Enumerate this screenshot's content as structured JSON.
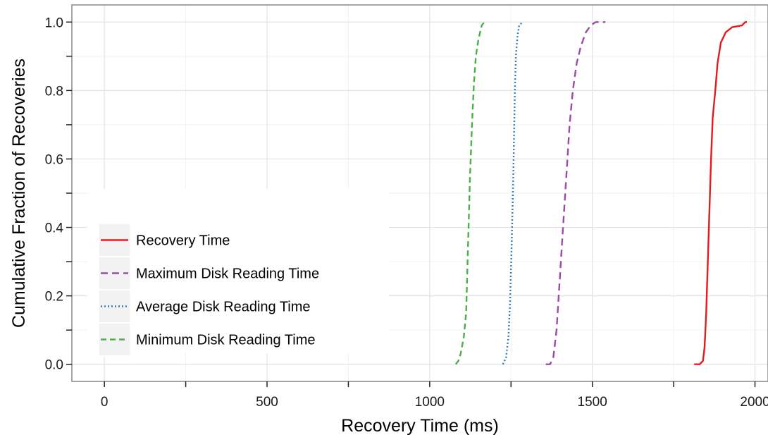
{
  "chart_data": {
    "type": "line",
    "title": "",
    "xlabel": "Recovery Time (ms)",
    "ylabel": "Cumulative Fraction of Recoveries",
    "xlim": [
      -100,
      2040
    ],
    "ylim": [
      -0.05,
      1.05
    ],
    "x_ticks": [
      0,
      500,
      1000,
      1500,
      2000
    ],
    "x_tick_labels": [
      "0",
      "500",
      "1000",
      "1500",
      "2000"
    ],
    "y_ticks": [
      0.0,
      0.2,
      0.4,
      0.6,
      0.8,
      1.0
    ],
    "y_tick_labels": [
      "0.0",
      "0.2",
      "0.4",
      "0.6",
      "0.8",
      "1.0"
    ],
    "grid": true,
    "legend_position": "bottom-left",
    "series": [
      {
        "name": "Recovery Time",
        "color": "#e41a1c",
        "dash": "solid",
        "points": [
          [
            1813,
            0.0
          ],
          [
            1830,
            0.0
          ],
          [
            1840,
            0.01
          ],
          [
            1845,
            0.05
          ],
          [
            1850,
            0.15
          ],
          [
            1855,
            0.3
          ],
          [
            1860,
            0.45
          ],
          [
            1865,
            0.6
          ],
          [
            1870,
            0.72
          ],
          [
            1878,
            0.8
          ],
          [
            1885,
            0.88
          ],
          [
            1895,
            0.94
          ],
          [
            1910,
            0.97
          ],
          [
            1930,
            0.985
          ],
          [
            1960,
            0.99
          ],
          [
            1970,
            1.0
          ],
          [
            1975,
            1.0
          ]
        ]
      },
      {
        "name": "Maximum Disk Reading Time",
        "color": "#984ea3",
        "dash": "long-dash",
        "points": [
          [
            1357,
            0.0
          ],
          [
            1370,
            0.0
          ],
          [
            1380,
            0.02
          ],
          [
            1390,
            0.1
          ],
          [
            1400,
            0.25
          ],
          [
            1410,
            0.4
          ],
          [
            1420,
            0.55
          ],
          [
            1430,
            0.7
          ],
          [
            1440,
            0.8
          ],
          [
            1452,
            0.88
          ],
          [
            1465,
            0.93
          ],
          [
            1480,
            0.97
          ],
          [
            1495,
            0.99
          ],
          [
            1510,
            1.0
          ],
          [
            1540,
            1.0
          ]
        ]
      },
      {
        "name": "Average Disk Reading Time",
        "color": "#377eb8",
        "dash": "dotted",
        "points": [
          [
            1225,
            0.0
          ],
          [
            1235,
            0.02
          ],
          [
            1242,
            0.08
          ],
          [
            1247,
            0.18
          ],
          [
            1252,
            0.35
          ],
          [
            1256,
            0.5
          ],
          [
            1259,
            0.65
          ],
          [
            1262,
            0.8
          ],
          [
            1265,
            0.9
          ],
          [
            1270,
            0.96
          ],
          [
            1275,
            0.99
          ],
          [
            1285,
            1.0
          ]
        ]
      },
      {
        "name": "Minimum Disk Reading Time",
        "color": "#4daf4a",
        "dash": "dashed",
        "points": [
          [
            1080,
            0.0
          ],
          [
            1088,
            0.01
          ],
          [
            1095,
            0.03
          ],
          [
            1105,
            0.08
          ],
          [
            1112,
            0.15
          ],
          [
            1118,
            0.35
          ],
          [
            1124,
            0.55
          ],
          [
            1130,
            0.7
          ],
          [
            1136,
            0.82
          ],
          [
            1142,
            0.9
          ],
          [
            1150,
            0.95
          ],
          [
            1160,
            0.99
          ],
          [
            1168,
            1.0
          ]
        ]
      }
    ]
  }
}
